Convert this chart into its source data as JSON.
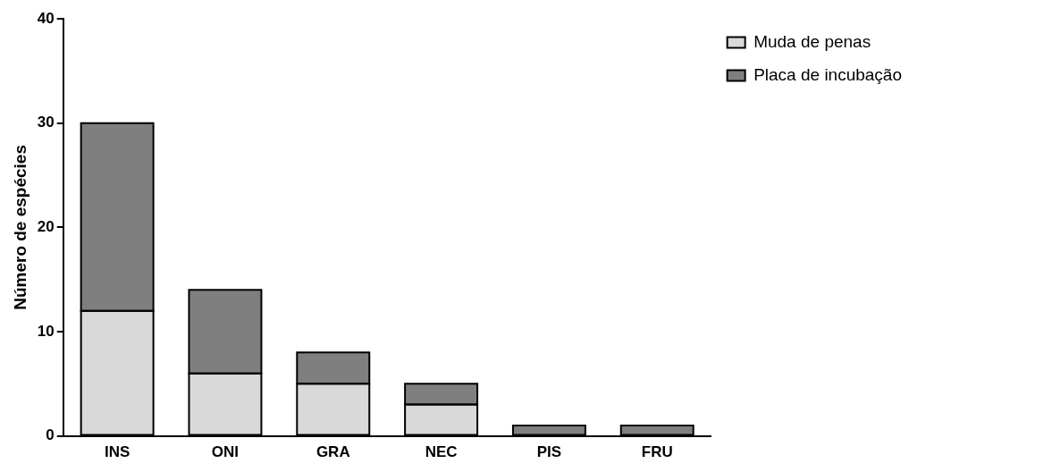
{
  "chart_data": {
    "type": "bar",
    "stacked": true,
    "ylabel": "Número de espécies",
    "categories": [
      "INS",
      "ONI",
      "GRA",
      "NEC",
      "PIS",
      "FRU"
    ],
    "series": [
      {
        "name": "Muda de penas",
        "color": "#d9d9d9",
        "values": [
          12,
          6,
          5,
          3,
          0,
          0
        ]
      },
      {
        "name": "Placa de incubação",
        "color": "#7f7f7f",
        "values": [
          18,
          8,
          3,
          2,
          1,
          1
        ]
      }
    ],
    "ylim": [
      0,
      40
    ],
    "yticks": [
      0,
      10,
      20,
      30,
      40
    ],
    "grid": false,
    "legend": "top right"
  }
}
